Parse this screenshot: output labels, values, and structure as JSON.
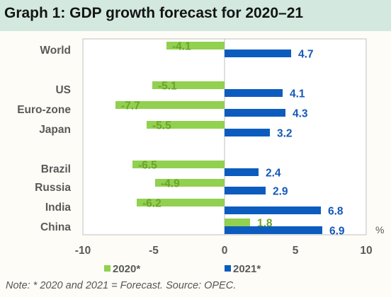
{
  "title": "Graph 1: GDP growth forecast for 2020–21",
  "note": "Note: * 2020 and 2021 = Forecast. Source: OPEC.",
  "chart_data": {
    "type": "bar",
    "orientation": "horizontal",
    "title": "Graph 1: GDP growth forecast for 2020–21",
    "categories": [
      "World",
      "US",
      "Euro-zone",
      "Japan",
      "Brazil",
      "Russia",
      "India",
      "China"
    ],
    "series": [
      {
        "name": "2020*",
        "values": [
          -4.1,
          -5.1,
          -7.7,
          -5.5,
          -6.5,
          -4.9,
          -6.2,
          1.8
        ],
        "color": "#92d050"
      },
      {
        "name": "2021*",
        "values": [
          4.7,
          4.1,
          4.3,
          3.2,
          2.4,
          2.9,
          6.8,
          6.9
        ],
        "color": "#0c5cbf"
      }
    ],
    "xlim": [
      -10,
      10
    ],
    "xticks": [
      "-10",
      "-5",
      "0",
      "5",
      "10"
    ],
    "unit_label": "%",
    "legend_position": "bottom",
    "grid": false
  }
}
